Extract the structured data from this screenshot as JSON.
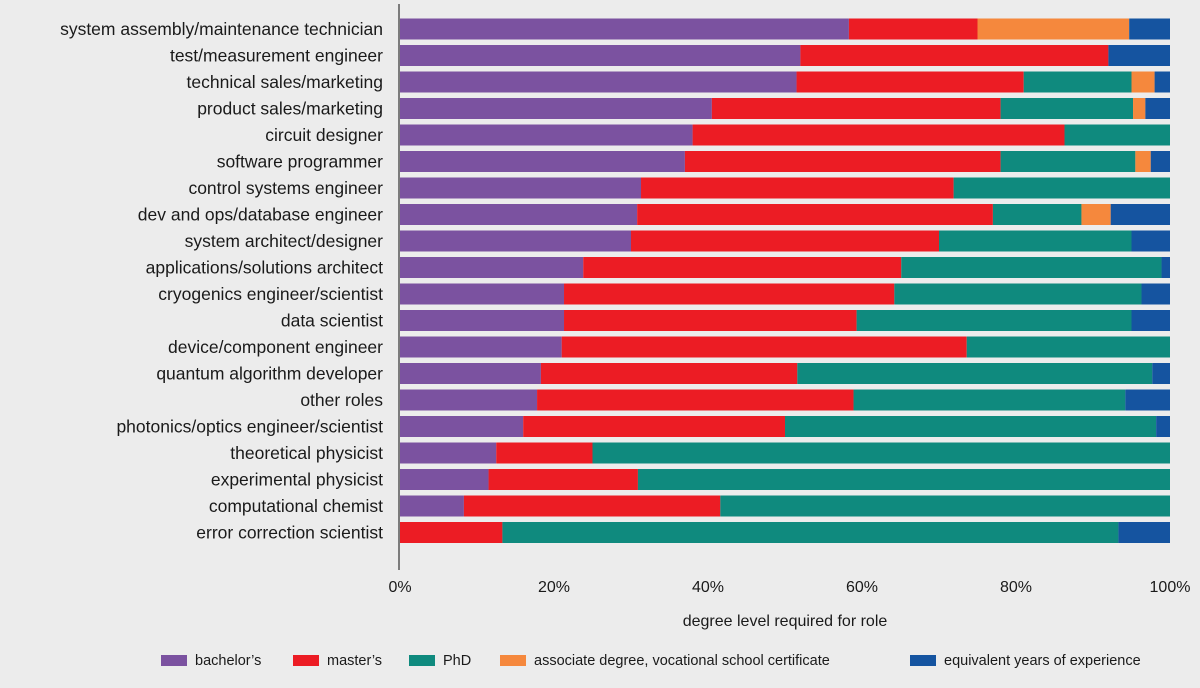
{
  "chart_data": {
    "type": "bar",
    "orientation": "horizontal",
    "stacked": true,
    "xlabel": "degree level required for role",
    "xlim": [
      0,
      100
    ],
    "x_ticks": [
      "0%",
      "20%",
      "40%",
      "60%",
      "80%",
      "100%"
    ],
    "legend_position": "bottom",
    "grid": false,
    "categories": [
      "system assembly/maintenance technician",
      "test/measurement engineer",
      "technical sales/marketing",
      "product sales/marketing",
      "circuit designer",
      "software programmer",
      "control systems engineer",
      "dev and ops/database engineer",
      "system architect/designer",
      "applications/solutions architect",
      "cryogenics engineer/scientist",
      "data scientist",
      "device/component engineer",
      "quantum algorithm developer",
      "other roles",
      "photonics/optics engineer/scientist",
      "theoretical physicist",
      "experimental physicist",
      "computational chemist",
      "error correction scientist"
    ],
    "series": [
      {
        "name": "bachelor’s",
        "color": "#7b52a0",
        "values": [
          58.3,
          52.0,
          51.5,
          40.5,
          38.0,
          37.0,
          31.3,
          30.8,
          30.0,
          23.8,
          21.3,
          21.3,
          21.0,
          18.3,
          17.8,
          16.0,
          12.5,
          11.5,
          8.3,
          0.0
        ]
      },
      {
        "name": "master’s",
        "color": "#ec1c24",
        "values": [
          16.7,
          40.0,
          29.5,
          37.5,
          48.3,
          41.0,
          40.6,
          46.2,
          40.0,
          41.3,
          42.9,
          38.0,
          52.6,
          33.3,
          41.1,
          34.0,
          12.5,
          19.4,
          33.3,
          13.3
        ]
      },
      {
        "name": "PhD",
        "color": "#0f8a7e",
        "values": [
          0.0,
          0.0,
          14.0,
          17.2,
          13.7,
          17.5,
          28.1,
          11.5,
          25.0,
          33.8,
          32.1,
          35.7,
          26.4,
          46.1,
          35.3,
          48.2,
          75.0,
          69.1,
          58.4,
          80.0
        ]
      },
      {
        "name": "associate degree, vocational school certificate",
        "color": "#f5883d",
        "values": [
          19.7,
          0.0,
          3.0,
          1.6,
          0.0,
          2.0,
          0.0,
          3.8,
          0.0,
          0.0,
          0.0,
          0.0,
          0.0,
          0.0,
          0.0,
          0.0,
          0.0,
          0.0,
          0.0,
          0.0
        ]
      },
      {
        "name": "equivalent years of experience",
        "color": "#1554a0",
        "values": [
          5.3,
          8.0,
          2.0,
          3.2,
          0.0,
          2.5,
          0.0,
          7.7,
          5.0,
          1.1,
          3.7,
          5.0,
          0.0,
          2.3,
          5.8,
          1.8,
          0.0,
          0.0,
          0.0,
          6.7
        ]
      }
    ]
  }
}
